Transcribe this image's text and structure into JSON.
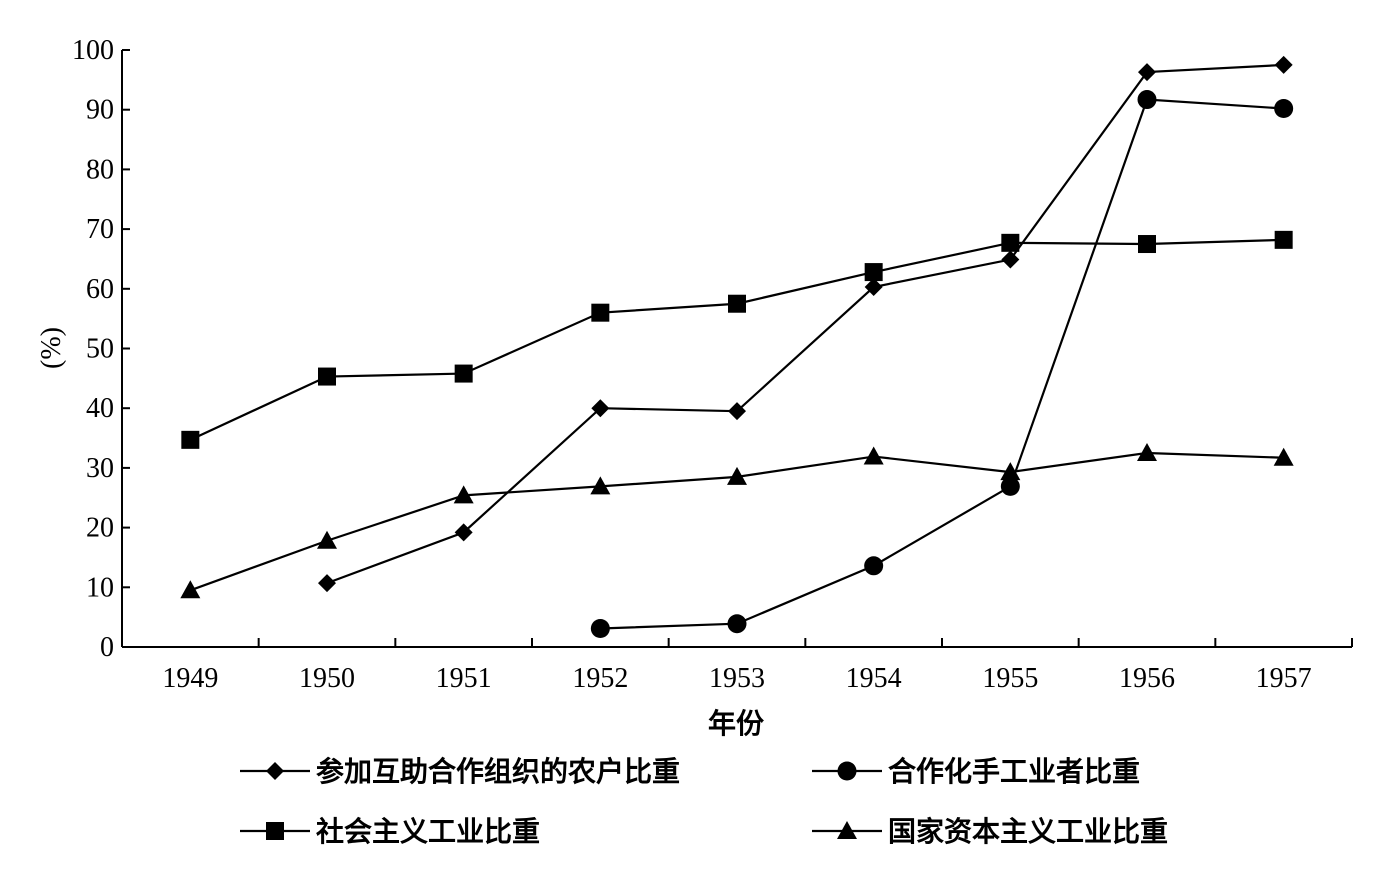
{
  "chart_data": {
    "type": "line",
    "xlabel": "年份",
    "ylabel": "(%)",
    "ylim": [
      0,
      100
    ],
    "yticks": [
      "0",
      "10",
      "20",
      "30",
      "40",
      "50",
      "60",
      "70",
      "80",
      "90",
      "100"
    ],
    "categories": [
      "1949",
      "1950",
      "1951",
      "1952",
      "1953",
      "1954",
      "1955",
      "1956",
      "1957"
    ],
    "legend_position": "bottom",
    "grid": false,
    "series": [
      {
        "name": "参加互助合作组织的农户比重",
        "marker": "diamond",
        "values": [
          null,
          10.7,
          19.2,
          40.0,
          39.5,
          60.3,
          64.9,
          96.3,
          97.5
        ]
      },
      {
        "name": "合作化手工业者比重",
        "marker": "circle",
        "values": [
          null,
          null,
          null,
          3.1,
          3.9,
          13.6,
          26.9,
          91.7,
          90.2
        ]
      },
      {
        "name": "社会主义工业比重",
        "marker": "square",
        "values": [
          34.7,
          45.3,
          45.8,
          56.0,
          57.5,
          62.8,
          67.7,
          67.5,
          68.2
        ]
      },
      {
        "name": "国家资本主义工业比重",
        "marker": "triangle",
        "values": [
          9.5,
          17.8,
          25.4,
          26.9,
          28.5,
          31.9,
          29.3,
          32.5,
          31.7
        ]
      }
    ]
  }
}
